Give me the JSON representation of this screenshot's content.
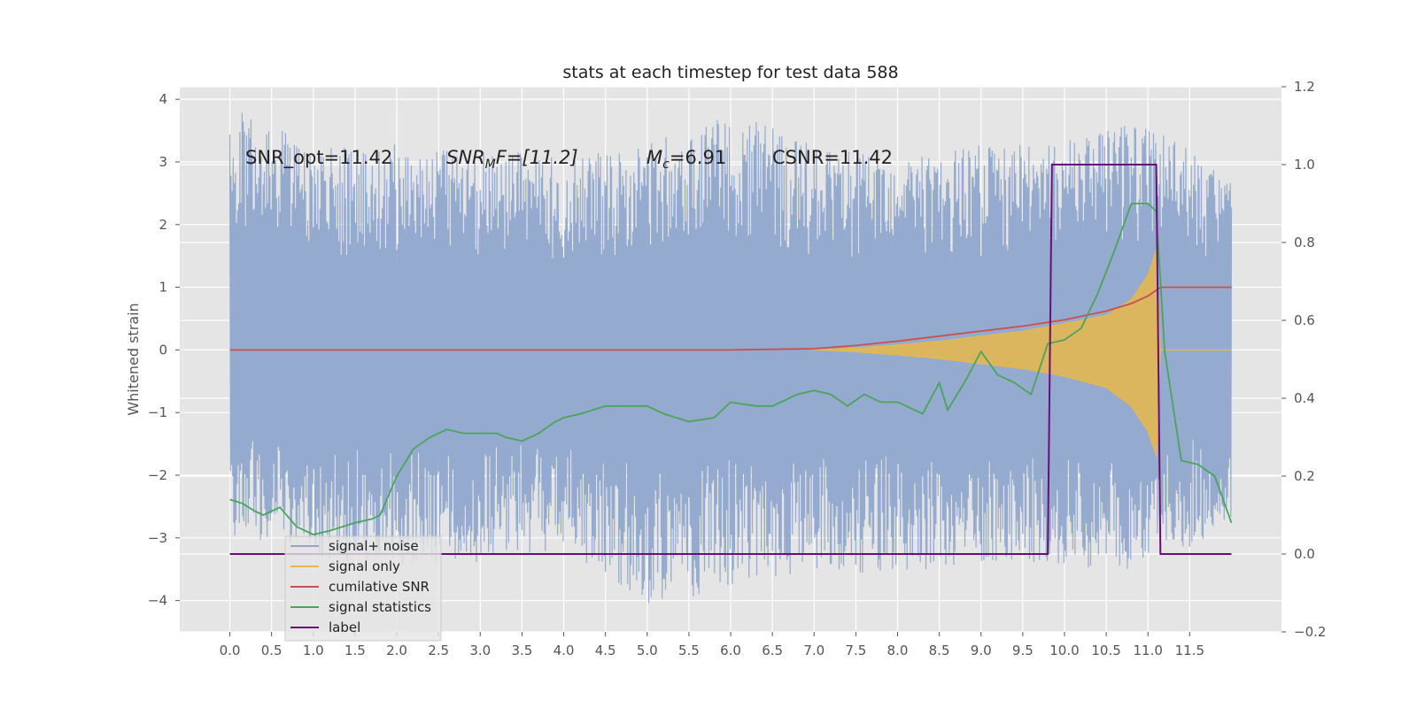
{
  "chart_data": {
    "type": "line",
    "title": "stats at each timestep for test data 588",
    "ylabel": "Whitened strain",
    "xlabel": "",
    "xlim": [
      -0.6,
      12.6
    ],
    "ylim": [
      -4.5,
      4.2
    ],
    "y2lim": [
      -0.2,
      1.2
    ],
    "x_ticks": [
      "0.0",
      "0.5",
      "1.0",
      "1.5",
      "2.0",
      "2.5",
      "3.0",
      "3.5",
      "4.0",
      "4.5",
      "5.0",
      "5.5",
      "6.0",
      "6.5",
      "7.0",
      "7.5",
      "8.0",
      "8.5",
      "9.0",
      "9.5",
      "10.0",
      "10.5",
      "11.0",
      "11.5"
    ],
    "y_ticks": [
      "4",
      "3",
      "2",
      "1",
      "0",
      "−1",
      "−2",
      "−3",
      "−4"
    ],
    "y2_ticks": [
      "1.2",
      "1.0",
      "0.8",
      "0.6",
      "0.4",
      "0.2",
      "0.0",
      "−0.2"
    ],
    "grid": true,
    "legend_position": "lower-left",
    "annotations": {
      "snr_opt": "SNR_opt=11.42",
      "snr_mf_base": "SNR",
      "snr_mf_sub": "M",
      "snr_mf_rest": "F=[11.2]",
      "mc_base": "M",
      "mc_sub": "c",
      "mc_rest": "=6.91",
      "csnr": "CSNR=11.42"
    },
    "series": [
      {
        "name": "signal+ noise",
        "color": "#8fa6cc",
        "axis": "left",
        "envelope": {
          "x": [
            0.0,
            1.0,
            2.0,
            3.0,
            4.0,
            5.0,
            6.0,
            7.0,
            8.0,
            9.0,
            10.0,
            11.0,
            12.0
          ],
          "upper": [
            4.0,
            3.2,
            3.3,
            3.2,
            3.1,
            3.3,
            3.8,
            3.3,
            3.0,
            3.3,
            3.4,
            3.7,
            2.7
          ],
          "lower": [
            -3.0,
            -3.3,
            -3.5,
            -3.4,
            -3.2,
            -4.1,
            -3.8,
            -3.5,
            -3.6,
            -3.4,
            -3.5,
            -3.5,
            -2.8
          ]
        }
      },
      {
        "name": "signal only",
        "color": "#e8b94a",
        "axis": "left",
        "envelope": {
          "x": [
            7.0,
            7.5,
            8.0,
            8.5,
            9.0,
            9.5,
            10.0,
            10.5,
            10.8,
            11.0,
            11.1,
            11.15
          ],
          "upper": [
            0.0,
            0.03,
            0.08,
            0.14,
            0.22,
            0.3,
            0.42,
            0.55,
            0.8,
            1.2,
            1.6,
            0.0
          ],
          "lower": [
            0.0,
            -0.03,
            -0.08,
            -0.14,
            -0.22,
            -0.3,
            -0.42,
            -0.6,
            -0.9,
            -1.3,
            -1.7,
            0.0
          ]
        }
      },
      {
        "name": "cumilative SNR",
        "color": "#cc4f4f",
        "axis": "left",
        "x": [
          0.0,
          6.0,
          7.0,
          7.5,
          8.0,
          8.5,
          9.0,
          9.5,
          10.0,
          10.5,
          10.8,
          11.0,
          11.15,
          12.0
        ],
        "values": [
          0.0,
          0.0,
          0.02,
          0.07,
          0.14,
          0.22,
          0.3,
          0.38,
          0.48,
          0.62,
          0.74,
          0.86,
          1.0,
          1.0
        ]
      },
      {
        "name": "signal statistics",
        "color": "#4aa55a",
        "axis": "right",
        "x": [
          0.0,
          0.15,
          0.3,
          0.4,
          0.5,
          0.6,
          0.8,
          1.0,
          1.2,
          1.5,
          1.7,
          1.8,
          2.0,
          2.2,
          2.4,
          2.5,
          2.6,
          2.8,
          3.0,
          3.2,
          3.3,
          3.5,
          3.7,
          3.9,
          4.0,
          4.2,
          4.5,
          4.8,
          5.0,
          5.2,
          5.5,
          5.8,
          6.0,
          6.3,
          6.5,
          6.8,
          7.0,
          7.2,
          7.4,
          7.6,
          7.8,
          8.0,
          8.3,
          8.5,
          8.6,
          8.8,
          9.0,
          9.2,
          9.4,
          9.6,
          9.8,
          10.0,
          10.2,
          10.4,
          10.6,
          10.8,
          11.0,
          11.1,
          11.2,
          11.4,
          11.6,
          11.8,
          12.0
        ],
        "values": [
          0.14,
          0.13,
          0.11,
          0.1,
          0.11,
          0.12,
          0.07,
          0.05,
          0.06,
          0.08,
          0.09,
          0.1,
          0.2,
          0.27,
          0.3,
          0.31,
          0.32,
          0.31,
          0.31,
          0.31,
          0.3,
          0.29,
          0.31,
          0.34,
          0.35,
          0.36,
          0.38,
          0.38,
          0.38,
          0.36,
          0.34,
          0.35,
          0.39,
          0.38,
          0.38,
          0.41,
          0.42,
          0.41,
          0.38,
          0.41,
          0.39,
          0.39,
          0.36,
          0.44,
          0.37,
          0.44,
          0.52,
          0.46,
          0.44,
          0.41,
          0.54,
          0.55,
          0.58,
          0.67,
          0.78,
          0.9,
          0.9,
          0.88,
          0.52,
          0.24,
          0.23,
          0.2,
          0.08
        ]
      },
      {
        "name": "label",
        "color": "#6a0f7a",
        "axis": "right",
        "x": [
          0.0,
          9.8,
          9.85,
          11.1,
          11.15,
          12.0
        ],
        "values": [
          0.0,
          0.0,
          1.0,
          1.0,
          0.0,
          0.0
        ]
      }
    ]
  }
}
